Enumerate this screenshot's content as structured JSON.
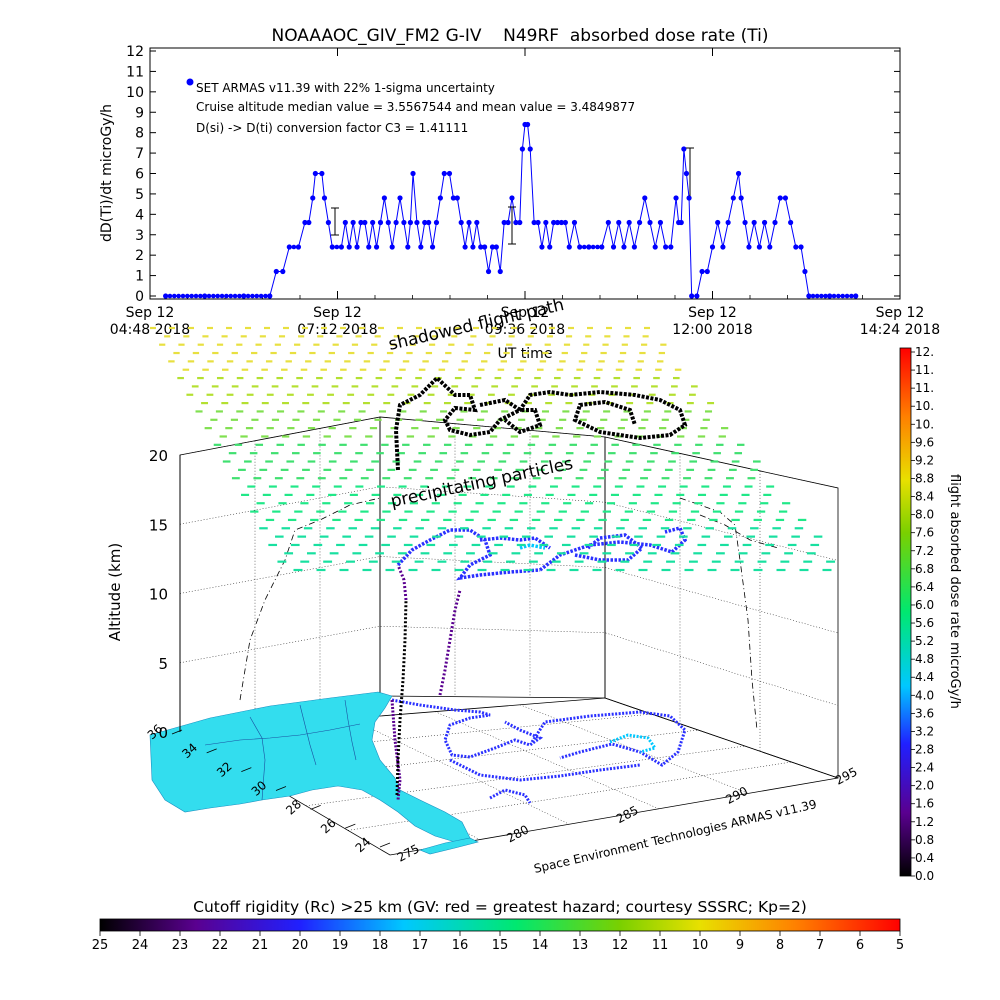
{
  "chart_data": [
    {
      "type": "line",
      "title": "NOAAAOC_GIV_FM2 G-IV    N49RF  absorbed dose rate (Ti)",
      "ylabel": "dD(Ti)/dt microGy/h",
      "xlabel": "UT time",
      "ylim": [
        0,
        12
      ],
      "yticks": [
        "0",
        "1",
        "2",
        "3",
        "4",
        "5",
        "6",
        "7",
        "8",
        "9",
        "10",
        "11",
        "12"
      ],
      "xticks": [
        {
          "l1": "Sep 12",
          "l2": "04:48 2018"
        },
        {
          "l1": "Sep 12",
          "l2": "07:12 2018"
        },
        {
          "l1": "Sep 12",
          "l2": "09:36 2018"
        },
        {
          "l1": "Sep 12",
          "l2": "12:00 2018"
        },
        {
          "l1": "Sep 12",
          "l2": "14:24 2018"
        }
      ],
      "legend": {
        "series": "SET ARMAS v11.39 with 22% 1-sigma uncertainty",
        "line2": "Cruise altitude median value = 3.5567544 and mean value = 3.4849877",
        "line3": "D(si) -> D(ti) conversion factor C3 = 1.41111"
      },
      "series": [
        {
          "name": "SET ARMAS v11.39 with 22% 1-sigma uncertainty",
          "color": "#0000ff",
          "points": [
            [
              "05:00",
              0
            ],
            [
              "05:30",
              0
            ],
            [
              "06:00",
              0
            ],
            [
              "06:20",
              0
            ],
            [
              "06:25",
              1.2
            ],
            [
              "06:30",
              1.2
            ],
            [
              "06:35",
              2.4
            ],
            [
              "06:42",
              2.4
            ],
            [
              "06:47",
              3.6
            ],
            [
              "06:50",
              3.6
            ],
            [
              "06:53",
              4.8
            ],
            [
              "06:55",
              6
            ],
            [
              "07:00",
              6
            ],
            [
              "07:02",
              4.8
            ],
            [
              "07:05",
              3.6
            ],
            [
              "07:08",
              2.4
            ],
            [
              "07:15",
              2.4
            ],
            [
              "07:18",
              3.6
            ],
            [
              "07:21",
              2.4
            ],
            [
              "07:24",
              3.6
            ],
            [
              "07:27",
              2.4
            ],
            [
              "07:30",
              3.6
            ],
            [
              "07:33",
              3.6
            ],
            [
              "07:36",
              2.4
            ],
            [
              "07:39",
              3.6
            ],
            [
              "07:42",
              2.4
            ],
            [
              "07:45",
              3.6
            ],
            [
              "07:48",
              4.8
            ],
            [
              "07:51",
              3.6
            ],
            [
              "07:54",
              2.4
            ],
            [
              "07:57",
              3.6
            ],
            [
              "08:00",
              4.8
            ],
            [
              "08:03",
              3.6
            ],
            [
              "08:06",
              2.4
            ],
            [
              "08:08",
              3.6
            ],
            [
              "08:10",
              6
            ],
            [
              "08:13",
              3.6
            ],
            [
              "08:16",
              2.4
            ],
            [
              "08:19",
              3.6
            ],
            [
              "08:22",
              3.6
            ],
            [
              "08:25",
              2.4
            ],
            [
              "08:28",
              3.6
            ],
            [
              "08:31",
              4.8
            ],
            [
              "08:34",
              6
            ],
            [
              "08:38",
              6
            ],
            [
              "08:41",
              4.8
            ],
            [
              "08:44",
              4.8
            ],
            [
              "08:47",
              3.6
            ],
            [
              "08:50",
              2.4
            ],
            [
              "08:53",
              3.6
            ],
            [
              "08:56",
              2.4
            ],
            [
              "08:59",
              3.6
            ],
            [
              "09:02",
              2.4
            ],
            [
              "09:05",
              2.4
            ],
            [
              "09:08",
              1.2
            ],
            [
              "09:11",
              2.4
            ],
            [
              "09:14",
              2.4
            ],
            [
              "09:17",
              1.2
            ],
            [
              "09:20",
              3.6
            ],
            [
              "09:23",
              3.6
            ],
            [
              "09:26",
              4.8
            ],
            [
              "09:29",
              3.6
            ],
            [
              "09:32",
              3.6
            ],
            [
              "09:34",
              7.2
            ],
            [
              "09:36",
              8.4
            ],
            [
              "09:38",
              8.4
            ],
            [
              "09:40",
              7.2
            ],
            [
              "09:43",
              3.6
            ],
            [
              "09:46",
              3.6
            ],
            [
              "09:49",
              2.4
            ],
            [
              "09:52",
              3.6
            ],
            [
              "09:55",
              2.4
            ],
            [
              "09:58",
              3.6
            ],
            [
              "10:01",
              3.6
            ],
            [
              "10:04",
              3.6
            ],
            [
              "10:07",
              3.6
            ],
            [
              "10:10",
              2.4
            ],
            [
              "10:14",
              3.6
            ],
            [
              "10:18",
              2.4
            ],
            [
              "10:25",
              2.4
            ],
            [
              "10:35",
              2.4
            ],
            [
              "10:40",
              3.6
            ],
            [
              "10:44",
              2.4
            ],
            [
              "10:48",
              3.6
            ],
            [
              "10:52",
              2.4
            ],
            [
              "10:56",
              3.6
            ],
            [
              "11:00",
              2.4
            ],
            [
              "11:04",
              3.6
            ],
            [
              "11:08",
              4.8
            ],
            [
              "11:12",
              3.6
            ],
            [
              "11:16",
              2.4
            ],
            [
              "11:20",
              3.6
            ],
            [
              "11:24",
              2.4
            ],
            [
              "11:28",
              2.4
            ],
            [
              "11:32",
              4.8
            ],
            [
              "11:34",
              3.6
            ],
            [
              "11:36",
              3.6
            ],
            [
              "11:38",
              7.2
            ],
            [
              "11:40",
              6
            ],
            [
              "11:42",
              4.8
            ],
            [
              "11:44",
              0
            ],
            [
              "11:48",
              0
            ],
            [
              "11:52",
              1.2
            ],
            [
              "11:56",
              1.2
            ],
            [
              "12:00",
              2.4
            ],
            [
              "12:04",
              3.6
            ],
            [
              "12:08",
              2.4
            ],
            [
              "12:12",
              3.6
            ],
            [
              "12:16",
              4.8
            ],
            [
              "12:20",
              6
            ],
            [
              "12:22",
              4.8
            ],
            [
              "12:25",
              3.6
            ],
            [
              "12:28",
              2.4
            ],
            [
              "12:32",
              3.6
            ],
            [
              "12:36",
              2.4
            ],
            [
              "12:40",
              3.6
            ],
            [
              "12:44",
              2.4
            ],
            [
              "12:48",
              3.6
            ],
            [
              "12:52",
              4.8
            ],
            [
              "12:56",
              4.8
            ],
            [
              "13:00",
              3.6
            ],
            [
              "13:04",
              2.4
            ],
            [
              "13:08",
              2.4
            ],
            [
              "13:11",
              1.2
            ],
            [
              "13:14",
              0
            ],
            [
              "13:30",
              0
            ],
            [
              "13:50",
              0
            ]
          ]
        }
      ]
    },
    {
      "type": "scatter",
      "ylabel": "Altitude (km)",
      "zticks": [
        "0",
        "5",
        "10",
        "15",
        "20"
      ],
      "lat_ticks": [
        "36",
        "34",
        "32",
        "30",
        "28",
        "26",
        "24"
      ],
      "lon_ticks": [
        "275",
        "280",
        "285",
        "290",
        "295"
      ],
      "annotations": [
        "shadowed flight path",
        "precipitating particles",
        "Space Environment Technologies ARMAS v11.39"
      ],
      "flight_track": "NOAA G-IV N49RF flight loops over the Atlantic east of Florida",
      "colorbar": {
        "label": "flight absorbed dose rate microGy/h",
        "ticks": [
          "0.0",
          "0.4",
          "0.8",
          "1.2",
          "1.6",
          "2.0",
          "2.4",
          "2.8",
          "3.2",
          "3.6",
          "4.0",
          "4.4",
          "4.8",
          "5.2",
          "5.6",
          "6.0",
          "6.4",
          "6.8",
          "7.2",
          "7.6",
          "8.0",
          "8.4",
          "8.8",
          "9.2",
          "9.6",
          "10.",
          "10.",
          "11.",
          "11.",
          "12."
        ]
      },
      "cutoff_bar": {
        "title": "Cutoff rigidity (Rc) >25 km (GV: red = greatest hazard; courtesy SSSRC; Kp=2)",
        "ticks": [
          "25",
          "24",
          "23",
          "22",
          "21",
          "20",
          "19",
          "18",
          "17",
          "16",
          "15",
          "14",
          "13",
          "12",
          "11",
          "10",
          "9",
          "8",
          "7",
          "6",
          "5"
        ]
      }
    }
  ]
}
